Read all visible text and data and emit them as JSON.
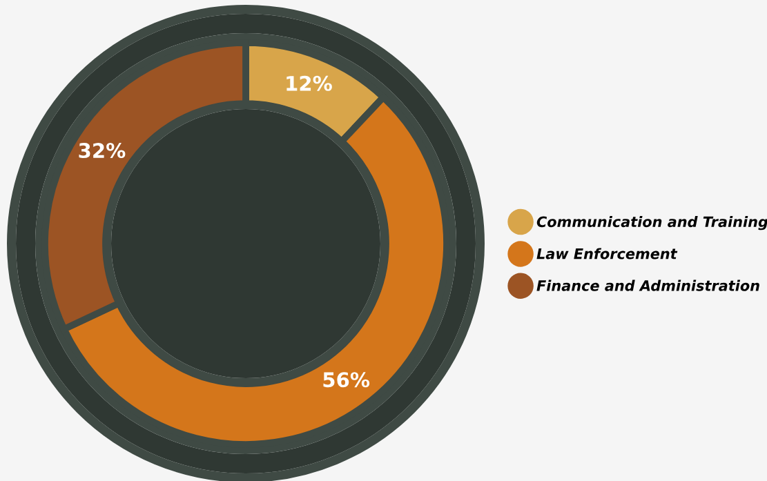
{
  "chart_data": {
    "type": "donut",
    "categories": [
      "Communication and Training",
      "Law Enforcement",
      "Finance and Administration"
    ],
    "values": [
      12,
      56,
      32
    ],
    "colors": [
      "#d8a54a",
      "#d4761b",
      "#9c5424"
    ],
    "value_labels": [
      "12%",
      "56%",
      "32%"
    ],
    "legend": "right"
  }
}
